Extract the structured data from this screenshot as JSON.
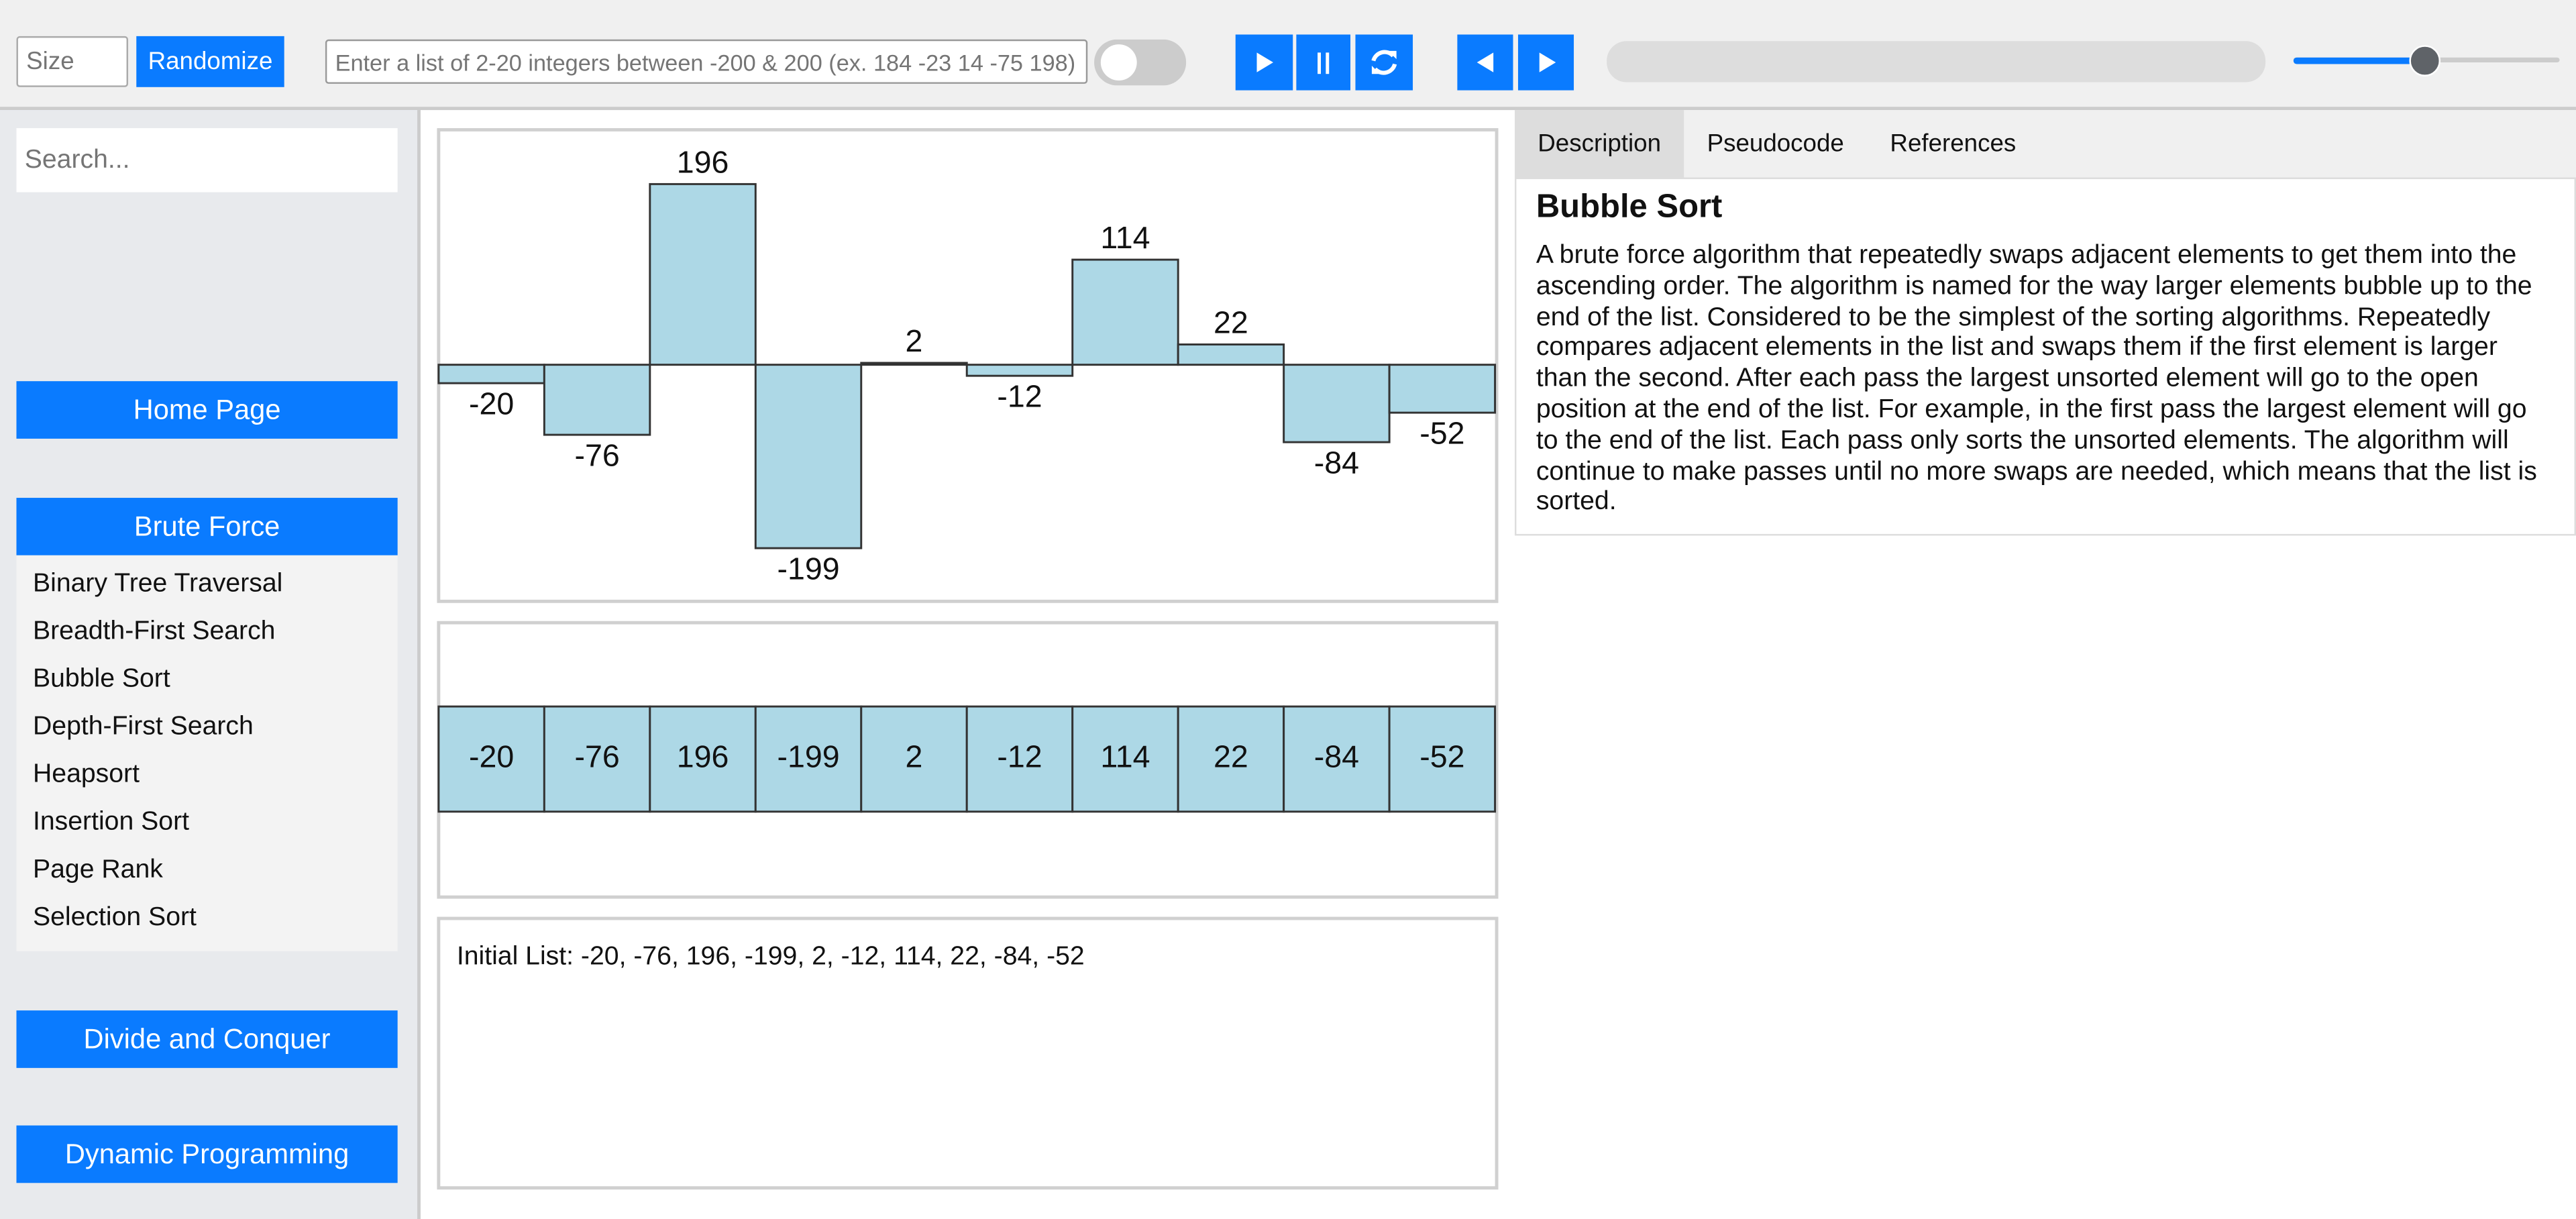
{
  "toolbar": {
    "size_placeholder": "Size",
    "randomize": "Randomize",
    "list_placeholder": "Enter a list of 2-20 integers between -200 & 200 (ex. 184 -23 14 -75 198)"
  },
  "sidebar": {
    "search_placeholder": "Search...",
    "home": "Home Page",
    "brute_force": "Brute Force",
    "algorithms": [
      "Binary Tree Traversal",
      "Breadth-First Search",
      "Bubble Sort",
      "Depth-First Search",
      "Heapsort",
      "Insertion Sort",
      "Page Rank",
      "Selection Sort"
    ],
    "divide_and_conquer": "Divide and Conquer",
    "dynamic_programming": "Dynamic Programming"
  },
  "bars": {
    "values": [
      -20,
      -76,
      196,
      -199,
      2,
      -12,
      114,
      22,
      -84,
      -52
    ]
  },
  "log": "Initial List: -20, -76, 196, -199, 2, -12, 114, 22, -84, -52",
  "tabs": [
    "Description",
    "Pseudocode",
    "References"
  ],
  "description": {
    "title": "Bubble Sort",
    "text": "A brute force algorithm that repeatedly swaps adjacent elements to get them into the ascending order. The algorithm is named for the way larger elements bubble up to the end of the list. Considered to be the simplest of the sorting algorithms. Repeatedly compares adjacent elements in the list and swaps them if the first element is larger than the second. After each pass the largest unsorted element will go to the open position at the end of the list. For example, in the first pass the largest element will go to the end of the list. Each pass only sorts the unsorted elements. The algorithm will continue to make passes until no more swaps are needed, which means that the list is sorted."
  }
}
